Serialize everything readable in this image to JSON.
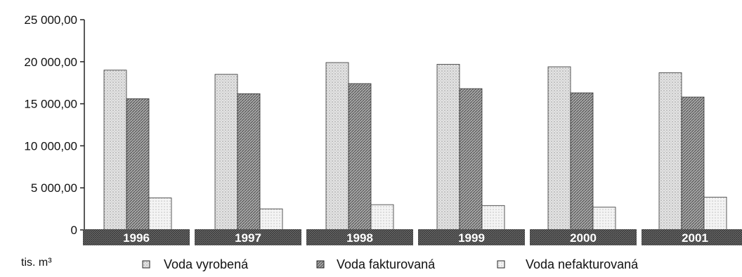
{
  "chart_data": {
    "type": "bar",
    "categories": [
      "1996",
      "1997",
      "1998",
      "1999",
      "2000",
      "2001"
    ],
    "series": [
      {
        "name": "Voda vyrobená",
        "values": [
          19000,
          18500,
          19900,
          19700,
          19400,
          18700
        ],
        "color": "#d9d9d9"
      },
      {
        "name": "Voda fakturovaná",
        "values": [
          15600,
          16200,
          17400,
          16800,
          16300,
          15800
        ],
        "color": "#8c8c8c"
      },
      {
        "name": "Voda nefakturovaná",
        "values": [
          3800,
          2500,
          3000,
          2900,
          2700,
          3900
        ],
        "color": "#f2f2f2"
      }
    ],
    "yticks": [
      "0",
      "5 000,00",
      "10 000,00",
      "15 000,00",
      "20 000,00",
      "25 000,00"
    ],
    "ylim": [
      0,
      25000
    ],
    "ylabel": "tis. m³",
    "xlabel": "",
    "grid": false,
    "legend": "bottom"
  }
}
